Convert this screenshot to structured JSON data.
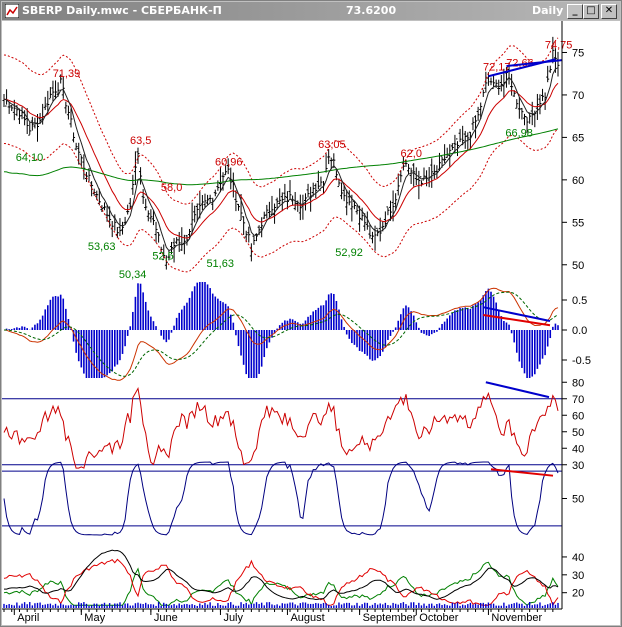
{
  "window": {
    "title": "SBERP Daily.mwc - СБЕРБАНК-П",
    "last_price": "73.6200",
    "period": "Daily",
    "minimize_glyph": "_",
    "maximize_glyph": "□",
    "close_glyph": "✕",
    "icon": "metastock-chart-icon"
  },
  "colors": {
    "title_bar": "#8c8c8c",
    "price_bars": "#000000",
    "moving_average_long": "#008000",
    "envelope": "#cc0000",
    "histogram": "#0000cc",
    "trend_line_blue": "#0000cc",
    "trend_line_red": "#e00000",
    "level_lines": "#00008b",
    "high_label": "#cc0000",
    "low_label": "#008000"
  },
  "chart_data": [
    {
      "type": "line",
      "panel": "price",
      "axis_ticks": [
        50,
        55,
        60,
        65,
        70,
        75
      ],
      "ylim": [
        47.5,
        78
      ],
      "x_months": [
        "April",
        "May",
        "June",
        "July",
        "August",
        "September",
        "October",
        "November"
      ],
      "close_anchors": [
        [
          0,
          69.5
        ],
        [
          6,
          68
        ],
        [
          10,
          66
        ],
        [
          14,
          67
        ],
        [
          18,
          70
        ],
        [
          22,
          71.4
        ],
        [
          25,
          68
        ],
        [
          28,
          64
        ],
        [
          33,
          60
        ],
        [
          38,
          57
        ],
        [
          42,
          55
        ],
        [
          45,
          53.6
        ],
        [
          49,
          57
        ],
        [
          52,
          63.5
        ],
        [
          54,
          58
        ],
        [
          58,
          55
        ],
        [
          61,
          52
        ],
        [
          63,
          50.3
        ],
        [
          67,
          53
        ],
        [
          70,
          52.5
        ],
        [
          73,
          55
        ],
        [
          77,
          57
        ],
        [
          81,
          58
        ],
        [
          85,
          60.5
        ],
        [
          87,
          61
        ],
        [
          90,
          58
        ],
        [
          93,
          55
        ],
        [
          95,
          53
        ],
        [
          96,
          51.6
        ],
        [
          100,
          55
        ],
        [
          104,
          57
        ],
        [
          108,
          57.5
        ],
        [
          112,
          58
        ],
        [
          116,
          57
        ],
        [
          120,
          59
        ],
        [
          124,
          60
        ],
        [
          126,
          63
        ],
        [
          128,
          62
        ],
        [
          132,
          58
        ],
        [
          136,
          57
        ],
        [
          140,
          55
        ],
        [
          143,
          52.9
        ],
        [
          146,
          54
        ],
        [
          149,
          56
        ],
        [
          152,
          58
        ],
        [
          154,
          61
        ],
        [
          156,
          62
        ],
        [
          160,
          60
        ],
        [
          164,
          60
        ],
        [
          168,
          61
        ],
        [
          172,
          63
        ],
        [
          176,
          64
        ],
        [
          180,
          65
        ],
        [
          184,
          67.5
        ],
        [
          186,
          70
        ],
        [
          188,
          72.2
        ],
        [
          190,
          71
        ],
        [
          194,
          71.5
        ],
        [
          196,
          72.7
        ],
        [
          198,
          70
        ],
        [
          201,
          68
        ],
        [
          204,
          67
        ],
        [
          207,
          69
        ],
        [
          210,
          70
        ],
        [
          213,
          74.8
        ],
        [
          215,
          73.6
        ]
      ],
      "labels_high": [
        "71,39",
        "63,5",
        "58,0",
        "60,96",
        "63,05",
        "62,0",
        "72,17",
        "72,66",
        "74,75"
      ],
      "labels_low": [
        "64,10",
        "53,63",
        "50,34",
        "52,5",
        "51,63",
        "52,92",
        "66,98"
      ],
      "series": [
        {
          "name": "",
          "role": "price-bars"
        },
        {
          "name": "",
          "role": "moving-average"
        },
        {
          "name": "",
          "role": "envelope-upper"
        },
        {
          "name": "",
          "role": "envelope-lower"
        },
        {
          "name": "",
          "role": "long-moving-average"
        }
      ]
    },
    {
      "type": "bar",
      "panel": "oscillator-histogram",
      "axis_ticks": [
        "0.5",
        "0.0",
        "-0.5"
      ],
      "ylim": [
        -0.85,
        0.85
      ]
    },
    {
      "type": "line",
      "panel": "rsi",
      "axis_ticks": [
        30,
        40,
        50,
        60,
        70,
        80
      ],
      "levels": [
        30,
        70
      ],
      "ylim": [
        25,
        85
      ]
    },
    {
      "type": "line",
      "panel": "oscillator-2",
      "axis_ticks": [
        50
      ],
      "levels": [
        20,
        80
      ],
      "ylim": [
        10,
        90
      ]
    },
    {
      "type": "line",
      "panel": "directional-movement",
      "axis_ticks": [
        20,
        30,
        40
      ],
      "ylim": [
        12,
        45
      ],
      "series": [
        {
          "name": "",
          "color": "#008000"
        },
        {
          "name": "",
          "color": "#e00000"
        },
        {
          "name": "",
          "color": "#000000"
        }
      ]
    }
  ]
}
